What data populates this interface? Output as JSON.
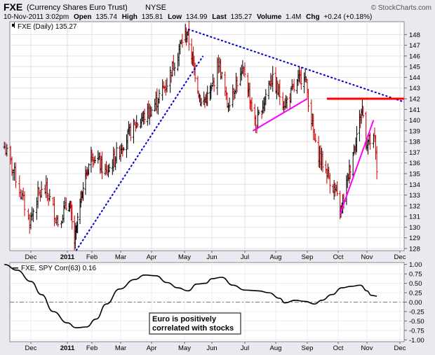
{
  "header": {
    "symbol": "FXE",
    "name": "(Currency Shares Euro Trust)",
    "exchange": "NYSE",
    "source": "© StockCharts.com",
    "date_time": "10-Nov-2011 3:02pm",
    "open_label": "Open",
    "open": "135.74",
    "high_label": "High",
    "high": "135.81",
    "low_label": "Low",
    "low": "134.99",
    "last_label": "Last",
    "last": "135.27",
    "volume_label": "Volume",
    "volume": "1.4M",
    "chg_label": "Chg",
    "chg": "+0.24 (+0.18%)"
  },
  "colors": {
    "background": "#e9e9ef",
    "panel": "#ffffff",
    "up_bar": "#000000",
    "down_bar": "#cc0000",
    "trend_blue": "#0000cc",
    "trend_magenta": "#ff00ff",
    "resistance_red": "#ff0000"
  },
  "chart_data": [
    {
      "type": "ohlc",
      "legend": "FXE (Daily) 135.27",
      "y_ticks": [
        128,
        129,
        130,
        131,
        132,
        133,
        134,
        135,
        136,
        137,
        138,
        139,
        140,
        141,
        142,
        143,
        144,
        145,
        146,
        147,
        148
      ],
      "ylim": [
        127.8,
        149.2
      ],
      "x_ticks": [
        {
          "label": "Dec",
          "bold": false
        },
        {
          "label": "2011",
          "bold": true
        },
        {
          "label": "Feb",
          "bold": false
        },
        {
          "label": "Mar",
          "bold": false
        },
        {
          "label": "Apr",
          "bold": false
        },
        {
          "label": "May",
          "bold": false
        },
        {
          "label": "Jun",
          "bold": false
        },
        {
          "label": "Jul",
          "bold": false
        },
        {
          "label": "Aug",
          "bold": false
        },
        {
          "label": "Sep",
          "bold": false
        },
        {
          "label": "Oct",
          "bold": false
        },
        {
          "label": "Nov",
          "bold": false
        },
        {
          "label": "Dec",
          "bold": false
        }
      ],
      "series_anchors": [
        {
          "date": "2010-11-10",
          "close": 137.5
        },
        {
          "date": "2010-11-18",
          "close": 135.0
        },
        {
          "date": "2010-11-30",
          "close": 130.5
        },
        {
          "date": "2010-12-07",
          "close": 133.0
        },
        {
          "date": "2010-12-14",
          "close": 133.5
        },
        {
          "date": "2010-12-24",
          "close": 130.5
        },
        {
          "date": "2011-01-03",
          "close": 132.5
        },
        {
          "date": "2011-01-10",
          "close": 128.6
        },
        {
          "date": "2011-01-20",
          "close": 133.5
        },
        {
          "date": "2011-02-01",
          "close": 137.0
        },
        {
          "date": "2011-02-15",
          "close": 135.0
        },
        {
          "date": "2011-03-01",
          "close": 137.5
        },
        {
          "date": "2011-03-15",
          "close": 139.5
        },
        {
          "date": "2011-04-01",
          "close": 141.0
        },
        {
          "date": "2011-04-15",
          "close": 143.5
        },
        {
          "date": "2011-04-29",
          "close": 147.5
        },
        {
          "date": "2011-05-04",
          "close": 148.2
        },
        {
          "date": "2011-05-20",
          "close": 141.5
        },
        {
          "date": "2011-05-31",
          "close": 142.5
        },
        {
          "date": "2011-06-07",
          "close": 145.5
        },
        {
          "date": "2011-06-15",
          "close": 141.5
        },
        {
          "date": "2011-06-23",
          "close": 143.5
        },
        {
          "date": "2011-07-01",
          "close": 144.5
        },
        {
          "date": "2011-07-12",
          "close": 139.3
        },
        {
          "date": "2011-07-27",
          "close": 144.0
        },
        {
          "date": "2011-08-10",
          "close": 141.5
        },
        {
          "date": "2011-08-29",
          "close": 144.5
        },
        {
          "date": "2011-09-09",
          "close": 137.5
        },
        {
          "date": "2011-09-26",
          "close": 133.8
        },
        {
          "date": "2011-10-04",
          "close": 131.5
        },
        {
          "date": "2011-10-27",
          "close": 141.2
        },
        {
          "date": "2011-10-31",
          "close": 138.0
        },
        {
          "date": "2011-11-08",
          "close": 138.0
        },
        {
          "date": "2011-11-10",
          "close": 135.3
        }
      ],
      "trendlines": [
        {
          "name": "support-rising",
          "color": "blue",
          "dashed": true,
          "from": {
            "date": "2011-01-12",
            "value": 127.8
          },
          "to": {
            "date": "2011-05-22",
            "value": 146.0
          }
        },
        {
          "name": "resistance-falling",
          "color": "blue",
          "dashed": true,
          "from": {
            "date": "2011-05-05",
            "value": 148.5
          },
          "to": {
            "date": "2011-12-05",
            "value": 141.7
          }
        },
        {
          "name": "wedge-summer",
          "color": "magenta",
          "dashed": false,
          "from": {
            "date": "2011-07-09",
            "value": 139.0
          },
          "to": {
            "date": "2011-09-01",
            "value": 142.0
          }
        },
        {
          "name": "wedge-autumn",
          "color": "magenta",
          "dashed": false,
          "from": {
            "date": "2011-10-03",
            "value": 131.2
          },
          "to": {
            "date": "2011-11-07",
            "value": 140.0
          }
        },
        {
          "name": "resistance-horizontal",
          "color": "red",
          "dashed": false,
          "from": {
            "date": "2011-09-20",
            "value": 142.0
          },
          "to": {
            "date": "2011-12-05",
            "value": 142.0
          }
        }
      ]
    },
    {
      "type": "line",
      "legend": "FXE, SPY Corr(63) 0.16",
      "y_ticks": [
        1.0,
        0.75,
        0.5,
        0.25,
        0.0,
        -0.25,
        -0.5,
        -0.75,
        -1.0
      ],
      "y_tick_labels": [
        "1.00",
        "0.75",
        "0.50",
        "0.25",
        "0.00",
        "-0.25",
        "-0.50",
        "-0.75",
        "-1.00"
      ],
      "ylim": [
        -1.05,
        1.05
      ],
      "reference_line": 0.0,
      "annotation_lines": [
        "Euro is positively",
        "correlated with stocks"
      ],
      "x_ticks": [
        {
          "label": "Dec",
          "bold": false
        },
        {
          "label": "2011",
          "bold": true
        },
        {
          "label": "Feb",
          "bold": false
        },
        {
          "label": "Mar",
          "bold": false
        },
        {
          "label": "Apr",
          "bold": false
        },
        {
          "label": "May",
          "bold": false
        },
        {
          "label": "Jun",
          "bold": false
        },
        {
          "label": "Jul",
          "bold": false
        },
        {
          "label": "Aug",
          "bold": false
        },
        {
          "label": "Sep",
          "bold": false
        },
        {
          "label": "Oct",
          "bold": false
        },
        {
          "label": "Nov",
          "bold": false
        },
        {
          "label": "Dec",
          "bold": false
        }
      ],
      "series": [
        {
          "points": [
            {
              "date": "2010-11-10",
              "value": 1.0
            },
            {
              "date": "2010-11-20",
              "value": 0.85
            },
            {
              "date": "2010-12-01",
              "value": 0.55
            },
            {
              "date": "2010-12-10",
              "value": 0.2
            },
            {
              "date": "2010-12-20",
              "value": -0.25
            },
            {
              "date": "2011-01-01",
              "value": -0.55
            },
            {
              "date": "2011-01-12",
              "value": -0.68
            },
            {
              "date": "2011-01-25",
              "value": -0.66
            },
            {
              "date": "2011-02-05",
              "value": -0.45
            },
            {
              "date": "2011-02-15",
              "value": -0.05
            },
            {
              "date": "2011-02-28",
              "value": 0.35
            },
            {
              "date": "2011-03-15",
              "value": 0.6
            },
            {
              "date": "2011-03-25",
              "value": 0.72
            },
            {
              "date": "2011-04-05",
              "value": 0.7
            },
            {
              "date": "2011-04-15",
              "value": 0.52
            },
            {
              "date": "2011-04-25",
              "value": 0.38
            },
            {
              "date": "2011-05-05",
              "value": 0.3
            },
            {
              "date": "2011-05-15",
              "value": 0.48
            },
            {
              "date": "2011-05-25",
              "value": 0.5
            },
            {
              "date": "2011-06-01",
              "value": 0.62
            },
            {
              "date": "2011-06-10",
              "value": 0.66
            },
            {
              "date": "2011-06-20",
              "value": 0.45
            },
            {
              "date": "2011-07-01",
              "value": 0.32
            },
            {
              "date": "2011-07-15",
              "value": 0.3
            },
            {
              "date": "2011-07-25",
              "value": 0.25
            },
            {
              "date": "2011-08-05",
              "value": 0.1
            },
            {
              "date": "2011-08-10",
              "value": -0.02
            },
            {
              "date": "2011-08-20",
              "value": 0.05
            },
            {
              "date": "2011-08-30",
              "value": 0.02
            },
            {
              "date": "2011-09-08",
              "value": -0.05
            },
            {
              "date": "2011-09-15",
              "value": 0.05
            },
            {
              "date": "2011-09-25",
              "value": 0.2
            },
            {
              "date": "2011-10-05",
              "value": 0.38
            },
            {
              "date": "2011-10-15",
              "value": 0.42
            },
            {
              "date": "2011-10-25",
              "value": 0.45
            },
            {
              "date": "2011-11-01",
              "value": 0.3
            },
            {
              "date": "2011-11-05",
              "value": 0.18
            },
            {
              "date": "2011-11-10",
              "value": 0.16
            }
          ]
        }
      ]
    }
  ]
}
